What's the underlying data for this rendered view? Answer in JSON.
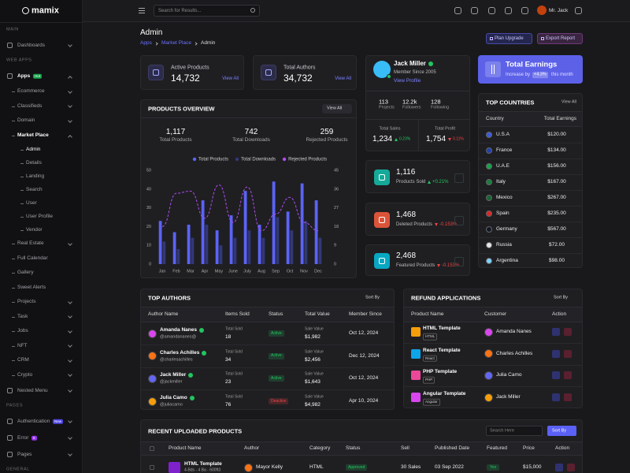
{
  "sidebar": {
    "logo": "mamix",
    "groups": [
      {
        "heading": "MAIN",
        "items": [
          {
            "label": "Dashboards",
            "submenu": true
          }
        ]
      },
      {
        "heading": "WEB APPS",
        "items": [
          {
            "label": "Apps",
            "badge": {
              "text": "Hot",
              "color": "#16a34a"
            },
            "submenu": true,
            "children": [
              {
                "label": "Ecommerce",
                "submenu": true
              },
              {
                "label": "Classifieds",
                "submenu": true
              },
              {
                "label": "Domain",
                "submenu": true
              },
              {
                "label": "Market Place",
                "submenu": true,
                "children": [
                  {
                    "label": "Admin"
                  },
                  {
                    "label": "Details"
                  },
                  {
                    "label": "Landing"
                  },
                  {
                    "label": "Search"
                  },
                  {
                    "label": "User"
                  },
                  {
                    "label": "User Profile"
                  },
                  {
                    "label": "Vendor"
                  }
                ]
              },
              {
                "label": "Real Estate",
                "submenu": true
              },
              {
                "label": "Full Calendar"
              },
              {
                "label": "Gallery"
              },
              {
                "label": "Sweet Alerts"
              },
              {
                "label": "Projects",
                "submenu": true
              },
              {
                "label": "Task",
                "submenu": true
              },
              {
                "label": "Jobs",
                "submenu": true
              },
              {
                "label": "NFT",
                "submenu": true
              },
              {
                "label": "CRM",
                "submenu": true
              },
              {
                "label": "Crypto",
                "submenu": true
              }
            ]
          },
          {
            "label": "Nested Menu",
            "submenu": true
          }
        ]
      },
      {
        "heading": "PAGES",
        "items": [
          {
            "label": "Authentication",
            "badge": {
              "text": "New",
              "color": "#4f46e5"
            },
            "submenu": true
          },
          {
            "label": "Error",
            "badge": {
              "text": "8",
              "color": "#9333ea"
            },
            "submenu": true
          },
          {
            "label": "Pages",
            "submenu": true
          }
        ]
      },
      {
        "heading": "GENERAL",
        "items": []
      }
    ]
  },
  "header": {
    "search_placeholder": "Search for Results...",
    "user": "Mr. Jack"
  },
  "page_header": {
    "title": "Admin",
    "breadcrumbs": [
      "Apps",
      "Market Place",
      "Admin"
    ],
    "buttons": [
      "Plan Upgrade",
      "Export Report"
    ]
  },
  "stats": [
    {
      "label": "Active Products",
      "value": "14,732",
      "link": "View All"
    },
    {
      "label": "Total Authors",
      "value": "34,732",
      "link": "View All"
    }
  ],
  "profile": {
    "name": "Jack Miller",
    "member_since": "Member Since 2005",
    "link": "View Profile",
    "counts": [
      {
        "value": "113",
        "label": "Projects"
      },
      {
        "value": "12.2k",
        "label": "Followers"
      },
      {
        "value": "128",
        "label": "Following"
      }
    ],
    "totals": [
      {
        "label": "Total Sales",
        "value": "1,234",
        "change": "0.23%",
        "color": "#22c55e"
      },
      {
        "label": "Total Profit",
        "value": "1,754",
        "change": "0.11%",
        "color": "#ef4444"
      }
    ]
  },
  "earnings": {
    "title": "Total Earnings",
    "caption": "Increase by",
    "change": "+4.3%",
    "period": "this month"
  },
  "products_overview": {
    "link": "View All",
    "summary": [
      {
        "value": "1,117",
        "label": "Total Products"
      },
      {
        "value": "742",
        "label": "Total Downloads"
      },
      {
        "value": "259",
        "label": "Rejected Products"
      }
    ]
  },
  "chart_data": {
    "type": "bar",
    "title": "PRODUCTS OVERVIEW",
    "categories": [
      "Jan",
      "Feb",
      "Mar",
      "Apr",
      "May",
      "June",
      "July",
      "Aug",
      "Sep",
      "Oct",
      "Nov",
      "Dec"
    ],
    "series": [
      {
        "name": "Total Products",
        "color": "#5b63f6",
        "values": [
          23,
          17,
          21,
          34,
          18,
          26,
          39,
          21,
          44,
          28,
          43,
          34
        ]
      },
      {
        "name": "Total Downloads",
        "color": "#323877",
        "values": [
          12,
          8,
          14,
          21,
          10,
          14,
          18,
          14,
          25,
          18,
          23,
          14
        ]
      },
      {
        "name": "Rejected Products",
        "type": "line",
        "axis": "y2",
        "color": "#b04cf2",
        "values": [
          18,
          34,
          35,
          22,
          38,
          20,
          37,
          16,
          24,
          32,
          20,
          16
        ]
      }
    ],
    "ylim": [
      0,
      50
    ],
    "yticks": [
      0,
      10,
      20,
      30,
      40,
      50
    ],
    "y2lim": [
      0,
      45
    ],
    "y2ticks": [
      0,
      9,
      18,
      27,
      36,
      45
    ],
    "grid": false,
    "legend": "top"
  },
  "product_stats": [
    {
      "value": "1,116",
      "label": "Products Sold",
      "change": "+0.21%",
      "color": "#22c55e",
      "icon_color": "#14b8a6"
    },
    {
      "value": "1,468",
      "label": "Deleted Products",
      "change": "-0.153%",
      "color": "#ef4444",
      "icon_color": "#f05a3c"
    },
    {
      "value": "2,468",
      "label": "Featured Products",
      "change": "-0.153%",
      "color": "#ef4444",
      "icon_color": "#06b6d4"
    }
  ],
  "countries": {
    "title": "TOP COUNTRIES",
    "link": "View All",
    "columns": [
      "Country",
      "Total Earnings"
    ],
    "rows": [
      [
        "U.S.A",
        "$120.00"
      ],
      [
        "France",
        "$134.00"
      ],
      [
        "U.A.E",
        "$156.00"
      ],
      [
        "Italy",
        "$167.00"
      ],
      [
        "Mexico",
        "$267.00"
      ],
      [
        "Spain",
        "$235.00"
      ],
      [
        "Germany",
        "$567.00"
      ],
      [
        "Russia",
        "$72.00"
      ],
      [
        "Argentina",
        "$98.00"
      ]
    ]
  },
  "top_authors": {
    "title": "TOP AUTHORS",
    "sort": "Sort By",
    "columns": [
      "Author Name",
      "Items Sold",
      "Status",
      "Total Value",
      "Member Since"
    ],
    "item_caption": "Total Sold",
    "value_caption": "Sale Value",
    "rows": [
      {
        "name": "Amanda Nanes",
        "handle": "@amandananes@",
        "sold": "18",
        "status": "Active",
        "status_color": "#22c55e",
        "value": "$1,982",
        "since": "Oct 12, 2024"
      },
      {
        "name": "Charles Achilles",
        "handle": "@charlesachilles",
        "sold": "34",
        "status": "Active",
        "status_color": "#22c55e",
        "value": "$2,456",
        "since": "Dec 12, 2024"
      },
      {
        "name": "Jack Miller",
        "handle": "@jackmiller",
        "sold": "23",
        "status": "Active",
        "status_color": "#22c55e",
        "value": "$1,643",
        "since": "Oct 12, 2024"
      },
      {
        "name": "Julia Camo",
        "handle": "@juliacamo",
        "sold": "76",
        "status": "Deactive",
        "status_color": "#ef4444",
        "value": "$4,982",
        "since": "Apr 10, 2024"
      }
    ]
  },
  "refunds": {
    "title": "REFUND APPLICATIONS",
    "sort": "Sort By",
    "columns": [
      "Product Name",
      "Customer",
      "Action"
    ],
    "rows": [
      {
        "product": "HTML Template",
        "tag": "HTML",
        "customer": "Amanda Nanes"
      },
      {
        "product": "React Template",
        "tag": "React",
        "customer": "Charles Achilles"
      },
      {
        "product": "PHP Template",
        "tag": "PHP",
        "customer": "Julia Camo"
      },
      {
        "product": "Angular Template",
        "tag": "Angular",
        "customer": "Jack Miller"
      }
    ]
  },
  "recent_products": {
    "title": "RECENT UPLOADED PRODUCTS",
    "search_placeholder": "Search Here",
    "sort": "Sort By",
    "columns": [
      "Product Name",
      "Author",
      "Category",
      "Status",
      "Sell",
      "Published Date",
      "Featured",
      "Price",
      "Action"
    ],
    "rows": [
      {
        "name": "HTML Template",
        "details": "4-Bds - 4 Ba - 600ft3",
        "author": "Mayor Kelly",
        "category": "HTML",
        "status": "Approved",
        "sell": "30 Sales",
        "date": "03 Sep 2022",
        "featured": "Yes",
        "price": "$15,000"
      }
    ]
  }
}
